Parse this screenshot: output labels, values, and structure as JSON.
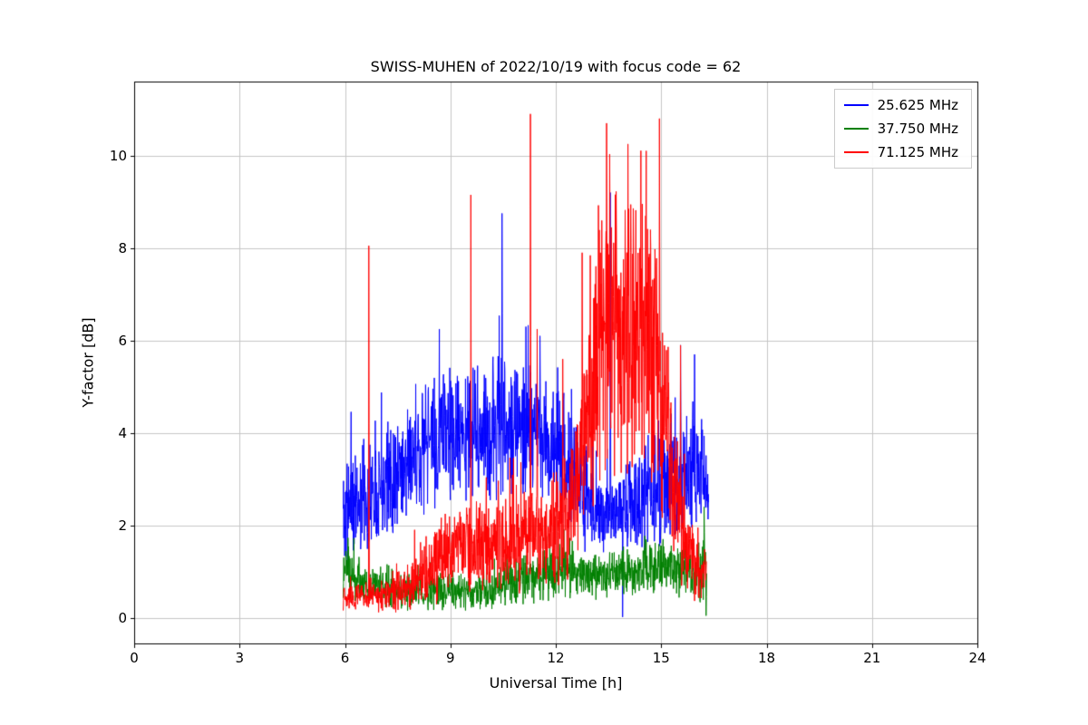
{
  "chart_data": {
    "type": "line",
    "title": "SWISS-MUHEN of 2022/10/19 with focus code = 62",
    "xlabel": "Universal Time [h]",
    "ylabel": "Y-factor [dB]",
    "xlim": [
      0,
      24
    ],
    "ylim": [
      -0.55,
      11.6
    ],
    "xticks": [
      0,
      3,
      6,
      9,
      12,
      15,
      18,
      21,
      24
    ],
    "yticks": [
      0,
      2,
      4,
      6,
      8,
      10
    ],
    "grid": true,
    "grid_color": "#c6c6c6",
    "frame_color": "#000000",
    "legend_position": "upper right",
    "series": [
      {
        "name": "25.625 MHz",
        "color": "#0000ff",
        "seed": 11,
        "x_range": [
          5.95,
          16.35
        ],
        "envelope": [
          [
            5.95,
            2.3,
            1.0
          ],
          [
            6.3,
            2.5,
            0.9
          ],
          [
            7.0,
            2.9,
            0.9
          ],
          [
            7.5,
            3.2,
            0.9
          ],
          [
            8.0,
            3.5,
            1.0
          ],
          [
            8.6,
            3.9,
            1.1
          ],
          [
            9.2,
            4.0,
            1.0
          ],
          [
            10.0,
            4.0,
            1.1
          ],
          [
            10.6,
            4.2,
            1.2
          ],
          [
            11.2,
            4.0,
            1.1
          ],
          [
            11.8,
            3.8,
            1.0
          ],
          [
            12.3,
            3.4,
            1.0
          ],
          [
            12.7,
            2.9,
            0.9
          ],
          [
            13.1,
            2.4,
            0.7
          ],
          [
            13.8,
            2.3,
            0.7
          ],
          [
            14.4,
            2.5,
            0.8
          ],
          [
            15.0,
            3.0,
            1.0
          ],
          [
            15.6,
            3.0,
            1.0
          ],
          [
            16.1,
            3.0,
            1.0
          ],
          [
            16.35,
            2.8,
            0.8
          ]
        ],
        "spikes": [
          [
            10.47,
            8.75
          ],
          [
            11.15,
            6.3
          ],
          [
            11.55,
            6.1
          ],
          [
            12.45,
            4.95
          ],
          [
            13.55,
            9.2
          ],
          [
            13.9,
            0.02
          ],
          [
            15.55,
            5.9
          ],
          [
            15.95,
            5.7
          ],
          [
            16.15,
            4.3
          ]
        ]
      },
      {
        "name": "37.750 MHz",
        "color": "#008000",
        "seed": 23,
        "x_range": [
          5.95,
          16.3
        ],
        "envelope": [
          [
            5.95,
            1.0,
            0.45
          ],
          [
            6.5,
            0.8,
            0.35
          ],
          [
            7.2,
            0.65,
            0.3
          ],
          [
            8.0,
            0.55,
            0.3
          ],
          [
            9.0,
            0.6,
            0.3
          ],
          [
            10.0,
            0.65,
            0.3
          ],
          [
            10.8,
            0.8,
            0.35
          ],
          [
            11.6,
            0.95,
            0.4
          ],
          [
            12.2,
            1.05,
            0.4
          ],
          [
            12.8,
            0.9,
            0.35
          ],
          [
            13.5,
            0.95,
            0.35
          ],
          [
            14.2,
            1.0,
            0.35
          ],
          [
            15.0,
            1.1,
            0.4
          ],
          [
            15.7,
            1.05,
            0.4
          ],
          [
            16.1,
            1.0,
            0.45
          ],
          [
            16.3,
            1.2,
            0.6
          ]
        ],
        "spikes": [
          [
            6.02,
            1.45
          ],
          [
            12.1,
            1.6
          ],
          [
            16.22,
            2.4
          ],
          [
            16.28,
            0.05
          ]
        ]
      },
      {
        "name": "71.125 MHz",
        "color": "#ff0000",
        "seed": 37,
        "x_range": [
          5.95,
          16.3
        ],
        "envelope": [
          [
            5.95,
            0.45,
            0.2
          ],
          [
            6.6,
            0.45,
            0.2
          ],
          [
            7.2,
            0.5,
            0.25
          ],
          [
            7.8,
            0.75,
            0.4
          ],
          [
            8.4,
            1.1,
            0.6
          ],
          [
            9.0,
            1.5,
            0.8
          ],
          [
            9.6,
            1.6,
            0.8
          ],
          [
            10.2,
            1.6,
            0.8
          ],
          [
            10.8,
            1.8,
            0.8
          ],
          [
            11.4,
            1.8,
            0.8
          ],
          [
            12.0,
            1.9,
            0.9
          ],
          [
            12.5,
            2.3,
            1.1
          ],
          [
            12.8,
            4.0,
            1.8
          ],
          [
            13.1,
            5.5,
            2.2
          ],
          [
            13.5,
            6.3,
            2.4
          ],
          [
            13.9,
            6.0,
            2.4
          ],
          [
            14.3,
            6.2,
            2.2
          ],
          [
            14.7,
            6.0,
            2.2
          ],
          [
            15.0,
            5.0,
            2.0
          ],
          [
            15.3,
            3.2,
            1.4
          ],
          [
            15.6,
            2.0,
            0.9
          ],
          [
            15.9,
            1.3,
            0.6
          ],
          [
            16.15,
            0.8,
            0.4
          ],
          [
            16.3,
            1.3,
            0.5
          ]
        ],
        "spikes": [
          [
            6.68,
            8.05
          ],
          [
            9.58,
            9.15
          ],
          [
            11.28,
            10.9
          ],
          [
            11.47,
            6.25
          ],
          [
            12.2,
            5.6
          ],
          [
            12.75,
            7.9
          ],
          [
            13.45,
            10.7
          ],
          [
            14.05,
            10.25
          ],
          [
            14.95,
            10.8
          ],
          [
            15.55,
            5.9
          ]
        ]
      }
    ]
  }
}
